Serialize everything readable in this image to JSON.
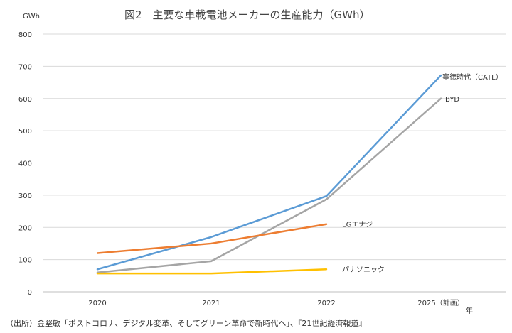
{
  "chart_data": {
    "type": "line",
    "title": "図2　主要な車載電池メーカーの生産能力（GWh）",
    "ylabel": "GWh",
    "xlabel": "年",
    "ylim": [
      0,
      800
    ],
    "yticks": [
      0,
      100,
      200,
      300,
      400,
      500,
      600,
      700,
      800
    ],
    "grid": true,
    "categories": [
      "2020",
      "2021",
      "2022",
      "2025（計画）"
    ],
    "series": [
      {
        "name": "寧徳時代（CATL）",
        "color": "#5b9bd5",
        "values": [
          70,
          170,
          297,
          672
        ]
      },
      {
        "name": "BYD",
        "color": "#a5a5a5",
        "values": [
          60,
          95,
          287,
          600
        ]
      },
      {
        "name": "LGエナジー",
        "color": "#ed7d31",
        "values": [
          120,
          150,
          210,
          null
        ]
      },
      {
        "name": "パナソニック",
        "color": "#ffc000",
        "values": [
          57,
          57,
          70,
          null
        ]
      }
    ],
    "source": "（出所）金堅敏「ポストコロナ、デジタル変革、そしてグリーン革命で新時代へ」、『21世紀経済報道』"
  }
}
